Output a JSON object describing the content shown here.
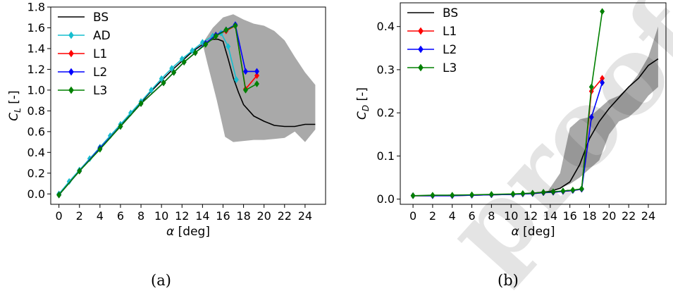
{
  "captions": {
    "a": "(a)",
    "b": "(b)"
  },
  "watermark": "proof",
  "colors": {
    "BS": "#000000",
    "AD": "#17becf",
    "L1": "#ff0000",
    "L2": "#0000ff",
    "L3": "#008000",
    "band": "#a9a9a9"
  },
  "chart_data": [
    {
      "type": "line",
      "panel": "a",
      "xlabel": "α [deg]",
      "ylabel": "C_L [-]",
      "xlim": [
        -0.8,
        26
      ],
      "ylim": [
        -0.1,
        1.8
      ],
      "xticks": [
        "0",
        "2",
        "4",
        "6",
        "8",
        "10",
        "12",
        "14",
        "16",
        "18",
        "20",
        "22",
        "24"
      ],
      "yticks": [
        "0.0",
        "0.2",
        "0.4",
        "0.6",
        "0.8",
        "1.0",
        "1.2",
        "1.4",
        "1.6",
        "1.8"
      ],
      "legend_position": "top-left",
      "band": {
        "upper": [
          [
            14,
            1.45
          ],
          [
            15,
            1.6
          ],
          [
            16,
            1.7
          ],
          [
            17,
            1.73
          ],
          [
            18,
            1.68
          ],
          [
            19,
            1.64
          ],
          [
            20,
            1.62
          ],
          [
            21,
            1.57
          ],
          [
            22,
            1.48
          ],
          [
            23,
            1.32
          ],
          [
            24,
            1.17
          ],
          [
            25,
            1.05
          ]
        ],
        "lower": [
          [
            25,
            0.62
          ],
          [
            24,
            0.5
          ],
          [
            23,
            0.6
          ],
          [
            22,
            0.54
          ],
          [
            21,
            0.53
          ],
          [
            20,
            0.52
          ],
          [
            19,
            0.52
          ],
          [
            18,
            0.51
          ],
          [
            17,
            0.5
          ],
          [
            16.2,
            0.55
          ],
          [
            15.4,
            0.9
          ],
          [
            14.5,
            1.25
          ]
        ]
      },
      "series": [
        {
          "name": "BS",
          "marker": "none",
          "x": [
            0,
            1,
            2,
            3,
            4,
            5,
            6,
            7,
            8,
            9,
            10,
            11,
            12,
            13,
            14,
            15,
            15.5,
            16,
            16.5,
            17,
            17.5,
            18,
            19,
            20,
            21,
            22,
            23,
            24,
            25
          ],
          "y": [
            0,
            0.11,
            0.22,
            0.33,
            0.44,
            0.55,
            0.66,
            0.77,
            0.88,
            0.99,
            1.09,
            1.19,
            1.28,
            1.37,
            1.44,
            1.49,
            1.49,
            1.47,
            1.3,
            1.12,
            0.98,
            0.86,
            0.75,
            0.7,
            0.66,
            0.65,
            0.65,
            0.67,
            0.67
          ]
        },
        {
          "name": "AD",
          "marker": "diamond",
          "x": [
            0,
            1,
            2,
            3,
            4,
            5,
            6,
            7,
            8,
            9,
            10,
            11,
            12,
            13,
            14,
            15,
            15.8,
            16.5,
            17.3
          ],
          "y": [
            0,
            0.12,
            0.23,
            0.34,
            0.45,
            0.56,
            0.67,
            0.78,
            0.89,
            1.0,
            1.11,
            1.21,
            1.3,
            1.38,
            1.46,
            1.52,
            1.55,
            1.42,
            1.1
          ]
        },
        {
          "name": "L1",
          "marker": "diamond",
          "x": [
            0,
            2,
            4,
            6,
            8,
            10.2,
            11.2,
            12.2,
            13.3,
            14.3,
            15.3,
            16.3,
            17.2,
            18.2,
            19.3
          ],
          "y": [
            -0.01,
            0.22,
            0.44,
            0.65,
            0.87,
            1.07,
            1.17,
            1.27,
            1.36,
            1.45,
            1.53,
            1.57,
            1.62,
            1.01,
            1.14
          ]
        },
        {
          "name": "L2",
          "marker": "diamond",
          "x": [
            0,
            2,
            4,
            6,
            8,
            10.2,
            11.2,
            12.2,
            13.3,
            14.3,
            15.3,
            16.3,
            17.2,
            18.2,
            19.3
          ],
          "y": [
            -0.01,
            0.22,
            0.44,
            0.65,
            0.87,
            1.07,
            1.17,
            1.27,
            1.36,
            1.45,
            1.53,
            1.58,
            1.63,
            1.18,
            1.18
          ]
        },
        {
          "name": "L3",
          "marker": "diamond",
          "x": [
            0,
            2,
            4,
            6,
            8,
            10.2,
            11.2,
            12.2,
            13.3,
            14.3,
            15.3,
            16.3,
            17.2,
            18.2,
            19.3
          ],
          "y": [
            -0.01,
            0.22,
            0.43,
            0.65,
            0.87,
            1.07,
            1.17,
            1.27,
            1.36,
            1.44,
            1.52,
            1.58,
            1.62,
            1.0,
            1.06
          ]
        }
      ]
    },
    {
      "type": "line",
      "panel": "b",
      "xlabel": "α [deg]",
      "ylabel": "C_D [-]",
      "xlim": [
        -1.3,
        25.8
      ],
      "ylim": [
        -0.012,
        0.455
      ],
      "xticks": [
        "0",
        "2",
        "4",
        "6",
        "8",
        "10",
        "12",
        "14",
        "16",
        "18",
        "20",
        "22",
        "24"
      ],
      "yticks": [
        "0.0",
        "0.1",
        "0.2",
        "0.3",
        "0.4"
      ],
      "legend_position": "top-left",
      "band": {
        "upper": [
          [
            13.8,
            0.02
          ],
          [
            15,
            0.06
          ],
          [
            16,
            0.165
          ],
          [
            17,
            0.185
          ],
          [
            18,
            0.19
          ],
          [
            19,
            0.21
          ],
          [
            20,
            0.23
          ],
          [
            21,
            0.24
          ],
          [
            22,
            0.26
          ],
          [
            23,
            0.29
          ],
          [
            24,
            0.33
          ],
          [
            25,
            0.4
          ]
        ],
        "lower": [
          [
            25,
            0.26
          ],
          [
            24,
            0.24
          ],
          [
            23,
            0.21
          ],
          [
            22,
            0.19
          ],
          [
            21,
            0.18
          ],
          [
            20,
            0.15
          ],
          [
            19,
            0.09
          ],
          [
            18,
            0.07
          ],
          [
            17,
            0.05
          ],
          [
            16,
            0.035
          ],
          [
            15,
            0.025
          ],
          [
            14,
            0.018
          ]
        ]
      },
      "series": [
        {
          "name": "BS",
          "marker": "none",
          "x": [
            0,
            2,
            4,
            6,
            8,
            10,
            12,
            14,
            15,
            16,
            17,
            18,
            19,
            20,
            21,
            22,
            23,
            24,
            25
          ],
          "y": [
            0.008,
            0.008,
            0.009,
            0.009,
            0.01,
            0.011,
            0.013,
            0.018,
            0.025,
            0.04,
            0.08,
            0.14,
            0.18,
            0.21,
            0.235,
            0.26,
            0.28,
            0.31,
            0.325
          ]
        },
        {
          "name": "L1",
          "marker": "diamond",
          "x": [
            0,
            2,
            4,
            6,
            8,
            10.2,
            11.2,
            12.2,
            13.3,
            14.3,
            15.3,
            16.3,
            17.2,
            18.2,
            19.3
          ],
          "y": [
            0.008,
            0.008,
            0.008,
            0.009,
            0.01,
            0.011,
            0.012,
            0.013,
            0.015,
            0.016,
            0.018,
            0.02,
            0.023,
            0.25,
            0.28
          ]
        },
        {
          "name": "L2",
          "marker": "diamond",
          "x": [
            0,
            2,
            4,
            6,
            8,
            10.2,
            11.2,
            12.2,
            13.3,
            14.3,
            15.3,
            16.3,
            17.2,
            18.2,
            19.3
          ],
          "y": [
            0.008,
            0.008,
            0.008,
            0.009,
            0.01,
            0.011,
            0.012,
            0.013,
            0.015,
            0.016,
            0.018,
            0.02,
            0.023,
            0.19,
            0.27
          ]
        },
        {
          "name": "L3",
          "marker": "diamond",
          "x": [
            0,
            2,
            4,
            6,
            8,
            10.2,
            11.2,
            12.2,
            13.3,
            14.3,
            15.3,
            16.3,
            17.2,
            18.2,
            19.3
          ],
          "y": [
            0.008,
            0.009,
            0.009,
            0.01,
            0.011,
            0.012,
            0.013,
            0.014,
            0.016,
            0.017,
            0.019,
            0.021,
            0.024,
            0.26,
            0.435
          ]
        }
      ]
    }
  ]
}
